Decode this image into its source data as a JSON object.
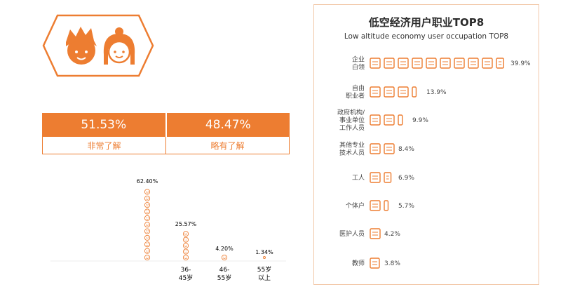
{
  "colors": {
    "accent": "#ed7d31",
    "light_accent": "#f2c8a9",
    "text": "#4a4a4a"
  },
  "awareness": {
    "items": [
      {
        "value": "51.53%",
        "label": "非常了解"
      },
      {
        "value": "48.47%",
        "label": "略有了解"
      }
    ]
  },
  "chart_data": [
    {
      "type": "bar",
      "categories": [
        "",
        "36-45岁",
        "46-55岁",
        "55岁以上"
      ],
      "category_lines": [
        [
          ""
        ],
        [
          "36-",
          "45岁"
        ],
        [
          "46-",
          "55岁"
        ],
        [
          "55岁",
          "以上"
        ]
      ],
      "values": [
        62.4,
        25.57,
        4.2,
        1.34
      ],
      "value_labels": [
        "62.40%",
        "25.57%",
        "4.20%",
        "1.34%"
      ],
      "icon": "smiley-face-icon"
    },
    {
      "type": "bar",
      "title": "低空经济用户职业TOP8",
      "subtitle": "Low altitude economy user occupation TOP8",
      "categories": [
        "企业白领",
        "自由职业者",
        "政府机构/事业单位工作人员",
        "其他专业技术人员",
        "工人",
        "个体户",
        "医护人员",
        "教师"
      ],
      "category_lines": [
        [
          "企业",
          "白领"
        ],
        [
          "自由",
          "职业者"
        ],
        [
          "政府机构/",
          "事业单位",
          "工作人员"
        ],
        [
          "其他专业",
          "技术人员"
        ],
        [
          "工人"
        ],
        [
          "个体户"
        ],
        [
          "医护人员"
        ],
        [
          "教师"
        ]
      ],
      "values": [
        39.9,
        13.9,
        9.9,
        8.4,
        6.9,
        5.7,
        4.2,
        3.8
      ],
      "value_labels": [
        "39.9%",
        "13.9%",
        "9.9%",
        "8.4%",
        "6.9%",
        "5.7%",
        "4.2%",
        "3.8%"
      ],
      "icon": "id-card-icon"
    }
  ]
}
